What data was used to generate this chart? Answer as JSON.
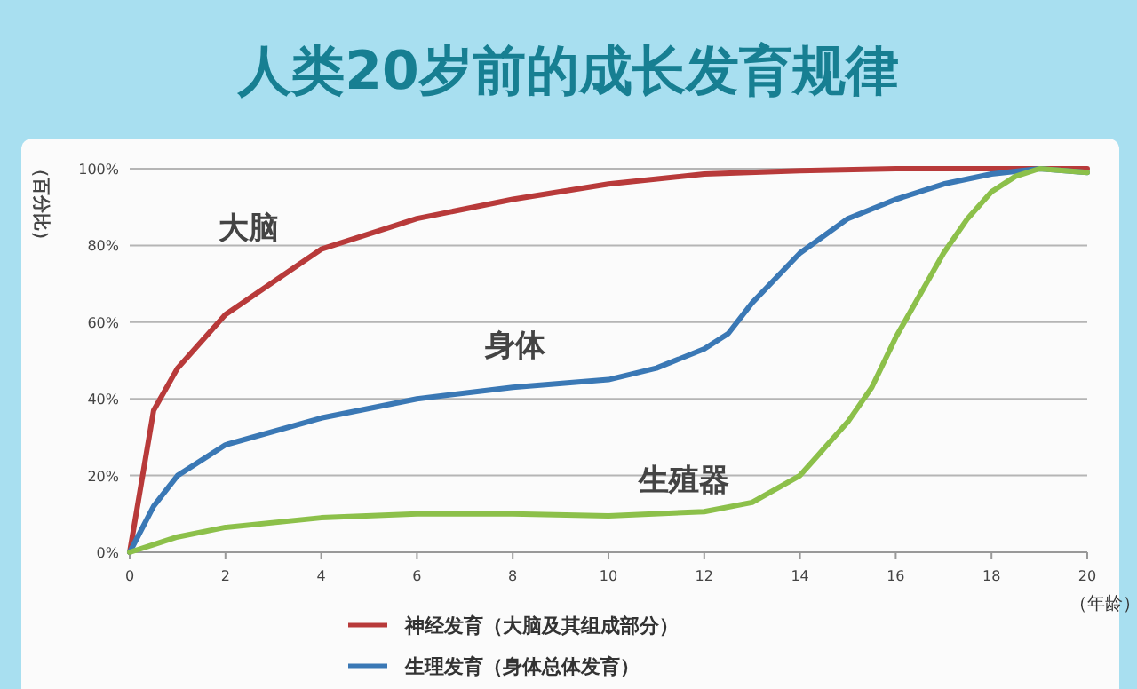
{
  "chart_data": {
    "type": "line",
    "title": "人类20岁前的成长发育规律",
    "ylabel": "（百分比）",
    "xlabel": "（年龄）",
    "xlim": [
      0,
      20
    ],
    "xticks": [
      0,
      2,
      4,
      6,
      8,
      10,
      12,
      14,
      16,
      18,
      20
    ],
    "ylim": [
      0,
      100
    ],
    "yticks": [
      {
        "value": 0,
        "label": "0%"
      },
      {
        "value": 20,
        "label": "20%"
      },
      {
        "value": 40,
        "label": "40%"
      },
      {
        "value": 60,
        "label": "60%"
      },
      {
        "value": 80,
        "label": "80%"
      },
      {
        "value": 100,
        "label": "100%"
      }
    ],
    "grid": "y",
    "legend": "bottom",
    "marker": "none",
    "line_style": "solid",
    "series": [
      {
        "name": "神经发育（大脑及其组成部分）",
        "color": "#b83a3a",
        "x": [
          0,
          0.5,
          1,
          2,
          4,
          6,
          8,
          10,
          12,
          14,
          16,
          18,
          20
        ],
        "values": [
          0,
          37,
          48,
          62,
          79,
          87,
          92,
          96,
          98.6,
          99.5,
          100,
          100,
          100
        ]
      },
      {
        "name": "生理发育（身体总体发育）",
        "color": "#3a78b5",
        "x": [
          0,
          0.5,
          1,
          2,
          4,
          6,
          8,
          10,
          11,
          12,
          12.5,
          13,
          14,
          15,
          16,
          17,
          18,
          19,
          20
        ],
        "values": [
          0,
          12,
          20,
          28,
          35,
          40,
          43,
          45,
          48,
          53,
          57,
          65,
          78,
          87,
          92,
          96,
          98.6,
          100,
          99
        ]
      },
      {
        "color": "#8cc04a",
        "x": [
          0,
          0.5,
          1,
          2,
          4,
          6,
          8,
          10,
          12,
          13,
          14,
          14.5,
          15,
          15.5,
          16,
          16.5,
          17,
          17.5,
          18,
          18.5,
          19,
          20
        ],
        "values": [
          0,
          2,
          4,
          6.5,
          9,
          10,
          10,
          9.5,
          10.6,
          13,
          20,
          27,
          34,
          43,
          56,
          67,
          78,
          87,
          94,
          98,
          100,
          99
        ]
      }
    ],
    "annotations": [
      "大脑",
      "身体",
      "生殖器"
    ]
  }
}
